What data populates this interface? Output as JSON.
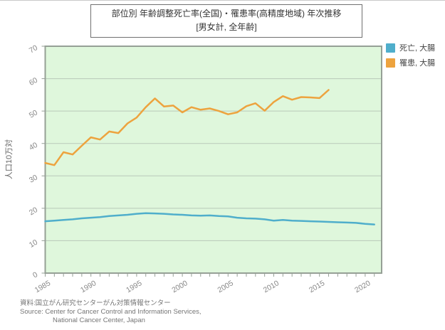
{
  "title": {
    "line1": "部位別 年齢調整死亡率(全国)・罹患率(高精度地域) 年次推移",
    "line2": "[男女計, 全年齢]"
  },
  "footer": {
    "jp": "資料:国立がん研究センターがん対策情報センター",
    "en1": "Source: Center for Cancer Control and Information Services,",
    "en2": "National Cancer Center, Japan"
  },
  "chart_data": {
    "type": "line",
    "title": "部位別 年齢調整死亡率(全国)・罹患率(高精度地域) 年次推移 [男女計, 全年齢]",
    "xlabel": "",
    "ylabel": "人口10万対",
    "ylim": [
      0,
      70
    ],
    "yticks": [
      0,
      10,
      20,
      30,
      40,
      50,
      60,
      70
    ],
    "xlim_years": [
      1985,
      2021.8
    ],
    "xticks": [
      1985,
      1990,
      1995,
      2000,
      2005,
      2010,
      2015,
      2020
    ],
    "grid": "horizontal",
    "legend_position": "top-right-outside",
    "plot_bg": "#dff7dc",
    "grid_color": "#b9c8b9",
    "border_color": "#96a096",
    "tick_color": "#888888",
    "series": [
      {
        "name": "死亡, 大腸",
        "color": "#4FAECB",
        "start_year": 1985,
        "step": 1,
        "values": [
          16.0,
          16.2,
          16.4,
          16.6,
          16.9,
          17.1,
          17.3,
          17.6,
          17.8,
          18.0,
          18.3,
          18.5,
          18.4,
          18.3,
          18.1,
          18.0,
          17.8,
          17.7,
          17.8,
          17.6,
          17.5,
          17.1,
          16.9,
          16.8,
          16.6,
          16.2,
          16.4,
          16.2,
          16.1,
          16.0,
          15.9,
          15.8,
          15.7,
          15.6,
          15.5,
          15.2,
          15.0
        ]
      },
      {
        "name": "罹患, 大腸",
        "color": "#EDA33E",
        "start_year": 1985,
        "step": 1,
        "values": [
          34.0,
          33.3,
          37.3,
          36.6,
          39.3,
          41.9,
          41.2,
          43.7,
          43.2,
          46.2,
          48.0,
          51.2,
          53.9,
          51.4,
          51.7,
          49.6,
          51.2,
          50.4,
          50.8,
          50.0,
          49.0,
          49.6,
          51.5,
          52.4,
          50.1,
          52.8,
          54.6,
          53.5,
          54.3,
          54.2,
          54.0,
          56.5
        ]
      }
    ]
  }
}
